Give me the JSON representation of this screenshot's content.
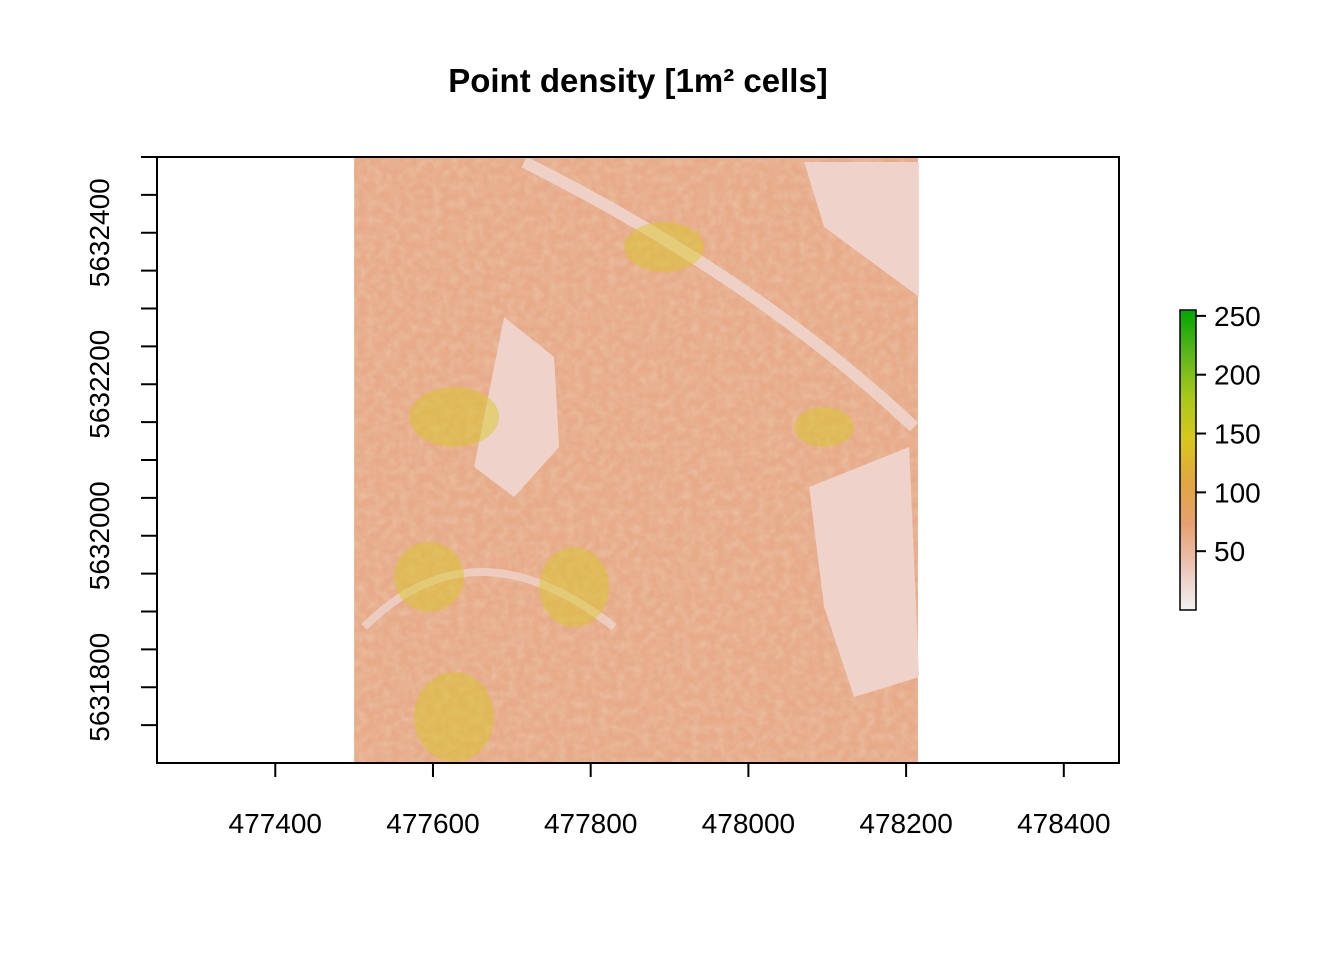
{
  "chart_data": {
    "type": "heatmap",
    "title": "Point density [1m² cells]",
    "xlabel": "",
    "ylabel": "",
    "xlim": [
      477250,
      478470
    ],
    "ylim": [
      5631700,
      5632500
    ],
    "x_ticks": [
      477400,
      477600,
      477800,
      478000,
      478200,
      478400
    ],
    "x_tick_labels": [
      "477400",
      "477600",
      "477800",
      "478000",
      "478200",
      "478400"
    ],
    "y_ticks": [
      5631750,
      5631800,
      5631850,
      5631900,
      5631950,
      5632000,
      5632050,
      5632100,
      5632150,
      5632200,
      5632250,
      5632300,
      5632350,
      5632400,
      5632450,
      5632500
    ],
    "y_tick_labels": [
      "",
      "5631800",
      "",
      "",
      "",
      "5632000",
      "",
      "",
      "",
      "5632200",
      "",
      "",
      "",
      "5632400",
      "",
      ""
    ],
    "raster_extent": {
      "xmin": 477500,
      "xmax": 478215,
      "ymin": 5631700,
      "ymax": 5632500
    },
    "legend": {
      "placement": "right",
      "min": 0,
      "max": 255,
      "ticks": [
        50,
        100,
        150,
        200,
        250
      ],
      "tick_labels": [
        "50",
        "100",
        "150",
        "200",
        "250"
      ],
      "colors": [
        "#f2f2f2",
        "#ecc5b8",
        "#e8a070",
        "#e2a640",
        "#d7c81c",
        "#a7c81a",
        "#5ab51c",
        "#00a600"
      ]
    },
    "grid": false
  }
}
